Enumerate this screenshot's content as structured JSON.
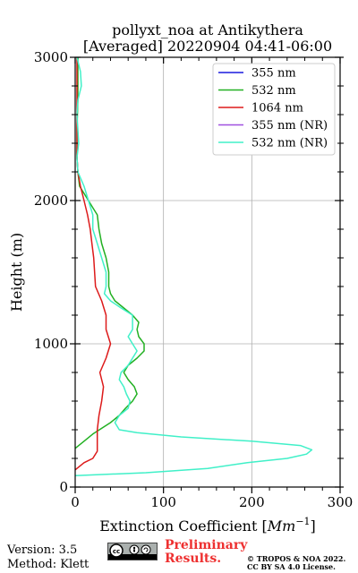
{
  "chart_data": {
    "type": "line",
    "title_line1": "pollyxt_noa at Antikythera",
    "title_line2": "[Averaged] 20220904 04:41-06:00",
    "xlabel_text": "Extinction Coefficient [",
    "xlabel_unit": "Mm",
    "xlabel_exp": "−1",
    "xlabel_close": "]",
    "ylabel": "Height (m)",
    "xlim": [
      0,
      300
    ],
    "ylim": [
      0,
      3000
    ],
    "xticks": [
      0,
      100,
      200,
      300
    ],
    "yticks": [
      0,
      1000,
      2000,
      3000
    ],
    "grid": true,
    "legend_position": "top-right",
    "series": [
      {
        "name": "355 nm",
        "color": "#1a1add",
        "points": []
      },
      {
        "name": "532 nm",
        "color": "#22b022",
        "points": [
          [
            0,
            270
          ],
          [
            10,
            320
          ],
          [
            20,
            370
          ],
          [
            30,
            410
          ],
          [
            40,
            450
          ],
          [
            50,
            500
          ],
          [
            57,
            550
          ],
          [
            65,
            600
          ],
          [
            70,
            650
          ],
          [
            67,
            700
          ],
          [
            60,
            750
          ],
          [
            55,
            800
          ],
          [
            60,
            850
          ],
          [
            70,
            900
          ],
          [
            78,
            950
          ],
          [
            78,
            1000
          ],
          [
            72,
            1050
          ],
          [
            70,
            1100
          ],
          [
            72,
            1150
          ],
          [
            65,
            1200
          ],
          [
            55,
            1250
          ],
          [
            45,
            1300
          ],
          [
            40,
            1350
          ],
          [
            38,
            1400
          ],
          [
            38,
            1500
          ],
          [
            35,
            1600
          ],
          [
            30,
            1700
          ],
          [
            27,
            1800
          ],
          [
            25,
            1900
          ],
          [
            20,
            1950
          ],
          [
            15,
            2000
          ],
          [
            10,
            2050
          ],
          [
            5,
            2100
          ],
          [
            3,
            2200
          ],
          [
            2,
            2300
          ],
          [
            2,
            2500
          ],
          [
            3,
            2700
          ],
          [
            3,
            2900
          ],
          [
            3,
            3000
          ]
        ]
      },
      {
        "name": "1064 nm",
        "color": "#dd1a1a",
        "points": [
          [
            0,
            120
          ],
          [
            10,
            170
          ],
          [
            20,
            200
          ],
          [
            25,
            250
          ],
          [
            25,
            300
          ],
          [
            25,
            400
          ],
          [
            27,
            500
          ],
          [
            30,
            600
          ],
          [
            32,
            700
          ],
          [
            28,
            800
          ],
          [
            35,
            900
          ],
          [
            40,
            1000
          ],
          [
            35,
            1100
          ],
          [
            35,
            1200
          ],
          [
            30,
            1300
          ],
          [
            23,
            1400
          ],
          [
            22,
            1500
          ],
          [
            21,
            1600
          ],
          [
            19,
            1700
          ],
          [
            17,
            1800
          ],
          [
            14,
            1900
          ],
          [
            10,
            2000
          ],
          [
            6,
            2100
          ],
          [
            3,
            2200
          ],
          [
            2,
            2300
          ],
          [
            2,
            2500
          ],
          [
            2,
            2800
          ],
          [
            2,
            3000
          ]
        ]
      },
      {
        "name": "355 nm (NR)",
        "color": "#a050e0",
        "points": []
      },
      {
        "name": "532 nm (NR)",
        "color": "#40f0c8",
        "points": [
          [
            0,
            80
          ],
          [
            80,
            100
          ],
          [
            150,
            130
          ],
          [
            195,
            170
          ],
          [
            240,
            200
          ],
          [
            262,
            230
          ],
          [
            268,
            260
          ],
          [
            255,
            290
          ],
          [
            200,
            320
          ],
          [
            120,
            350
          ],
          [
            70,
            380
          ],
          [
            50,
            400
          ],
          [
            45,
            450
          ],
          [
            50,
            500
          ],
          [
            60,
            550
          ],
          [
            62,
            600
          ],
          [
            58,
            650
          ],
          [
            55,
            700
          ],
          [
            50,
            750
          ],
          [
            52,
            800
          ],
          [
            60,
            850
          ],
          [
            65,
            900
          ],
          [
            70,
            950
          ],
          [
            65,
            1000
          ],
          [
            60,
            1050
          ],
          [
            65,
            1100
          ],
          [
            65,
            1200
          ],
          [
            52,
            1250
          ],
          [
            40,
            1300
          ],
          [
            33,
            1350
          ],
          [
            35,
            1400
          ],
          [
            35,
            1500
          ],
          [
            30,
            1600
          ],
          [
            25,
            1700
          ],
          [
            20,
            1800
          ],
          [
            20,
            1900
          ],
          [
            15,
            2000
          ],
          [
            10,
            2100
          ],
          [
            3,
            2200
          ],
          [
            2,
            2300
          ],
          [
            4,
            2400
          ],
          [
            2,
            2600
          ],
          [
            3,
            2700
          ],
          [
            7,
            2800
          ],
          [
            6,
            2900
          ],
          [
            2,
            3000
          ]
        ]
      }
    ]
  },
  "footer": {
    "version": "Version: 3.5",
    "method": "Method: Klett",
    "preliminary_line1": "Preliminary",
    "preliminary_line2": "Results.",
    "copyright_line1": "© TROPOS & NOA 2022.",
    "copyright_line2": "CC BY SA 4.0 License."
  }
}
